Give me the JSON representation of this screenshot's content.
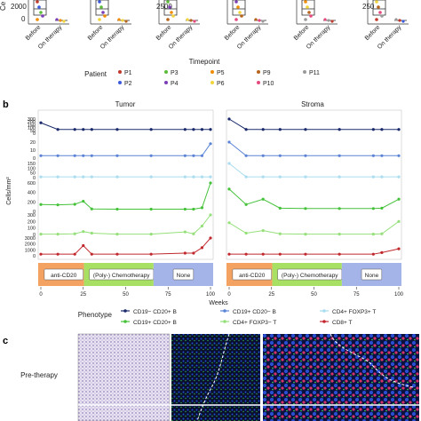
{
  "panel_a": {
    "ylabel_fragment": "Ce",
    "yticks_first": [
      "2000",
      "0"
    ],
    "yticks_third": [
      "2500"
    ],
    "yticks_sixth": [
      "250"
    ],
    "xtick_labels": [
      "Before",
      "On therapy"
    ],
    "xlabel": "Timepoint",
    "legend_title": "Patient",
    "patients": [
      {
        "name": "P1",
        "color": "#c0392b"
      },
      {
        "name": "P2",
        "color": "#3b5bdb"
      },
      {
        "name": "P3",
        "color": "#5dbb3a"
      },
      {
        "name": "P4",
        "color": "#7b3fb5"
      },
      {
        "name": "P5",
        "color": "#f08c00"
      },
      {
        "name": "P6",
        "color": "#f2d43b"
      },
      {
        "name": "P9",
        "color": "#b5651d"
      },
      {
        "name": "P10",
        "color": "#e64980"
      },
      {
        "name": "P11",
        "color": "#9a9a9a"
      }
    ]
  },
  "panel_b": {
    "letter": "b",
    "ylabel": "Cells/mm²",
    "xlabel": "Weeks",
    "panels": [
      "Tumor",
      "Stroma"
    ],
    "band_rows": [
      {
        "ticks": [
          "300",
          "200",
          "150",
          "100",
          "50",
          "0"
        ]
      },
      {
        "ticks": [
          "20",
          "10",
          "0"
        ]
      },
      {
        "ticks": [
          "150",
          "100",
          "50",
          "0"
        ]
      },
      {
        "ticks": [
          "600",
          "400",
          "200",
          "0"
        ]
      },
      {
        "ticks": [
          "300",
          "200",
          "100",
          "0"
        ]
      },
      {
        "ticks": [
          "3000",
          "2000",
          "1000",
          "0"
        ]
      }
    ],
    "xticks": [
      "0",
      "25",
      "50",
      "75",
      "100"
    ],
    "therapy_bar": [
      {
        "label": "anti-CD20",
        "color": "#f4a261"
      },
      {
        "label": "(Poly-) Chemotherapy",
        "color": "#a8e063"
      },
      {
        "label": "None",
        "color": "#a5b4e8"
      }
    ],
    "legend_title": "Phenotype",
    "phenotypes": [
      {
        "name": "CD19− CD20+ B",
        "color": "#1b2a6b"
      },
      {
        "name": "CD19+ CD20− B",
        "color": "#5b84d6"
      },
      {
        "name": "CD4+ FOXP3+ T",
        "color": "#a9dcef"
      },
      {
        "name": "CD19+ CD20+ B",
        "color": "#45c23a"
      },
      {
        "name": "CD4+ FOXP3− T",
        "color": "#95e07a"
      },
      {
        "name": "CD8+ T",
        "color": "#c0282d"
      }
    ]
  },
  "panel_c": {
    "letter": "c",
    "row_label": "Pre-therapy"
  },
  "chart_data": [
    {
      "type": "line",
      "title": "Tumor",
      "xlabel": "Weeks",
      "ylabel": "Cells/mm²",
      "xlim": [
        0,
        100
      ],
      "series": [
        {
          "name": "CD19− CD20+ B",
          "x": [
            0,
            10,
            20,
            25,
            30,
            45,
            65,
            85,
            90,
            95,
            100
          ],
          "values": [
            220,
            80,
            80,
            80,
            80,
            80,
            80,
            80,
            80,
            80,
            80
          ]
        },
        {
          "name": "CD19+ CD20− B",
          "x": [
            0,
            10,
            20,
            25,
            30,
            45,
            65,
            85,
            90,
            95,
            100
          ],
          "values": [
            3,
            3,
            3,
            3,
            3,
            3,
            3,
            3,
            3,
            3,
            18
          ]
        },
        {
          "name": "CD4+ FOXP3+ T",
          "x": [
            0,
            10,
            20,
            25,
            30,
            45,
            65,
            85,
            90,
            95,
            100
          ],
          "values": [
            8,
            8,
            8,
            8,
            8,
            8,
            8,
            8,
            8,
            8,
            8
          ]
        },
        {
          "name": "CD19+ CD20+ B",
          "x": [
            0,
            10,
            20,
            25,
            30,
            45,
            65,
            85,
            90,
            95,
            100
          ],
          "values": [
            170,
            160,
            175,
            250,
            60,
            55,
            55,
            55,
            55,
            90,
            700
          ]
        },
        {
          "name": "CD4+ FOXP3− T",
          "x": [
            0,
            10,
            20,
            25,
            30,
            45,
            65,
            85,
            90,
            95,
            100
          ],
          "values": [
            5,
            5,
            10,
            45,
            20,
            5,
            5,
            40,
            10,
            130,
            300
          ]
        },
        {
          "name": "CD8+ T",
          "x": [
            0,
            10,
            20,
            25,
            30,
            45,
            65,
            85,
            90,
            95,
            100
          ],
          "values": [
            300,
            300,
            300,
            1900,
            300,
            300,
            300,
            500,
            500,
            1500,
            3300
          ]
        }
      ]
    },
    {
      "type": "line",
      "title": "Stroma",
      "xlabel": "Weeks",
      "ylabel": "Cells/mm²",
      "xlim": [
        0,
        100
      ],
      "series": [
        {
          "name": "CD19− CD20+ B",
          "x": [
            0,
            10,
            20,
            30,
            45,
            65,
            85,
            90,
            100
          ],
          "values": [
            300,
            80,
            80,
            80,
            80,
            80,
            80,
            80,
            80
          ]
        },
        {
          "name": "CD19+ CD20− B",
          "x": [
            0,
            10,
            20,
            30,
            45,
            65,
            85,
            90,
            100
          ],
          "values": [
            20,
            3,
            3,
            3,
            3,
            3,
            3,
            3,
            3
          ]
        },
        {
          "name": "CD4+ FOXP3+ T",
          "x": [
            0,
            10,
            20,
            30,
            45,
            65,
            85,
            90,
            100
          ],
          "values": [
            150,
            8,
            8,
            8,
            8,
            8,
            8,
            8,
            8
          ]
        },
        {
          "name": "CD19+ CD20+ B",
          "x": [
            0,
            10,
            20,
            30,
            45,
            65,
            85,
            90,
            100
          ],
          "values": [
            550,
            170,
            300,
            80,
            70,
            70,
            70,
            80,
            300
          ]
        },
        {
          "name": "CD4+ FOXP3− T",
          "x": [
            0,
            10,
            20,
            30,
            45,
            65,
            85,
            90,
            100
          ],
          "values": [
            180,
            20,
            60,
            10,
            5,
            5,
            5,
            10,
            200
          ]
        },
        {
          "name": "CD8+ T",
          "x": [
            0,
            10,
            20,
            30,
            45,
            65,
            85,
            90,
            100
          ],
          "values": [
            300,
            300,
            300,
            300,
            300,
            300,
            300,
            600,
            1300
          ]
        }
      ]
    }
  ]
}
